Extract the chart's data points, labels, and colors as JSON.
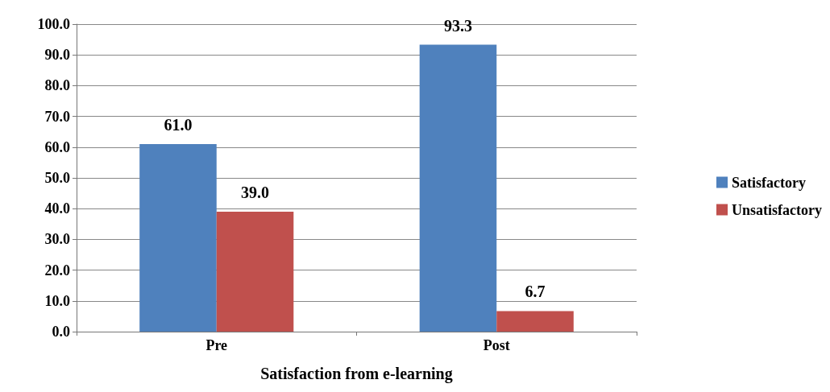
{
  "chart_data": {
    "type": "bar",
    "xlabel": "Satisfaction from e-learning",
    "categories": [
      "Pre",
      "Post"
    ],
    "series": [
      {
        "name": "Satisfactory",
        "color": "#4f81bd",
        "values": [
          61.0,
          93.3
        ],
        "value_labels": [
          "61.0",
          "93.3"
        ]
      },
      {
        "name": "Unsatisfactory",
        "color": "#c0504d",
        "values": [
          39.0,
          6.7
        ],
        "value_labels": [
          "39.0",
          "6.7"
        ]
      }
    ],
    "ylim": [
      0,
      100
    ],
    "yticks": [
      {
        "value": 0,
        "label": "0.0"
      },
      {
        "value": 10,
        "label": "10.0"
      },
      {
        "value": 20,
        "label": "20.0"
      },
      {
        "value": 30,
        "label": "30.0"
      },
      {
        "value": 40,
        "label": "40.0"
      },
      {
        "value": 50,
        "label": "50.0"
      },
      {
        "value": 60,
        "label": "60.0"
      },
      {
        "value": 70,
        "label": "70.0"
      },
      {
        "value": 80,
        "label": "80.0"
      },
      {
        "value": 90,
        "label": "90.0"
      },
      {
        "value": 100,
        "label": "100.0"
      }
    ],
    "grid": true,
    "legend": "right"
  }
}
